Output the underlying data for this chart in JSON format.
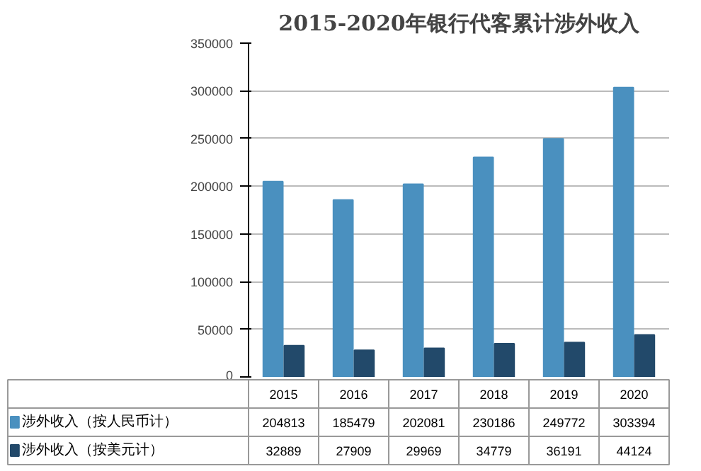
{
  "chart_data": {
    "type": "bar",
    "title": "2015-2020年银行代客累计涉外收入",
    "categories": [
      "2015",
      "2016",
      "2017",
      "2018",
      "2019",
      "2020"
    ],
    "series": [
      {
        "name": "涉外收入（按人民币计）",
        "color": "#4a90bf",
        "values": [
          204813,
          185479,
          202081,
          230186,
          249772,
          303394
        ]
      },
      {
        "name": "涉外收入（按美元计）",
        "color": "#22496a",
        "values": [
          32889,
          27909,
          29969,
          34779,
          36191,
          44124
        ]
      }
    ],
    "ylim": [
      0,
      350000
    ],
    "yticks": [
      0,
      50000,
      100000,
      150000,
      200000,
      250000,
      300000,
      350000
    ],
    "grid": "y",
    "legend": "bottom",
    "data_labels": true
  }
}
